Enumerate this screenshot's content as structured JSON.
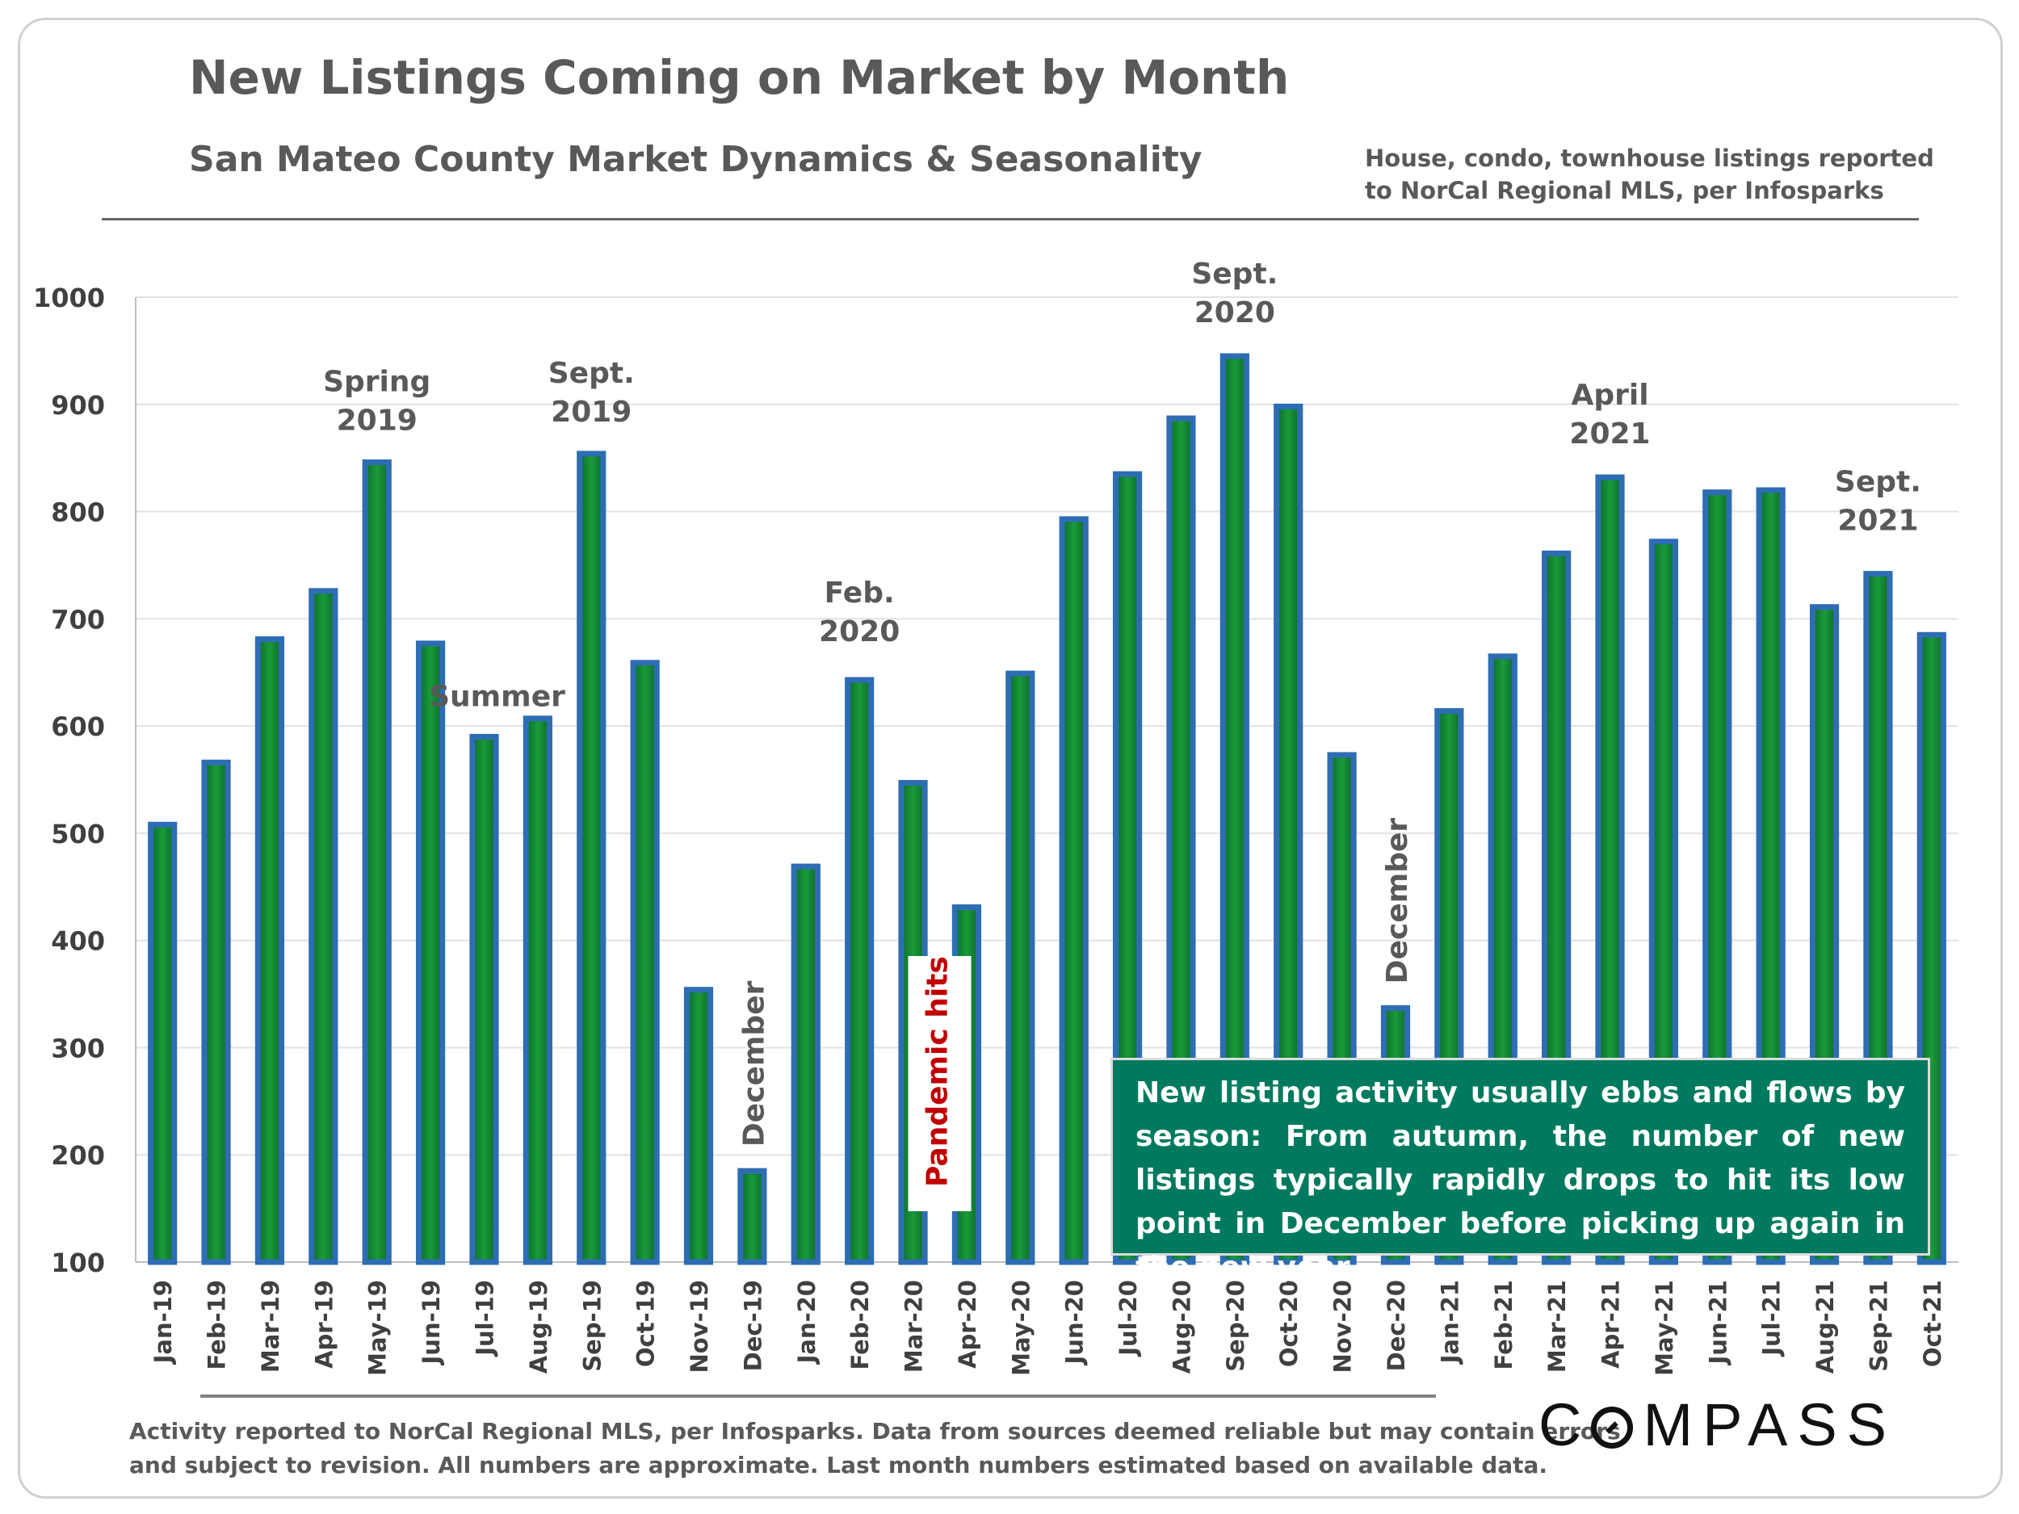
{
  "header": {
    "title": "New Listings Coming on Market by Month",
    "subtitle": "San Mateo County Market Dynamics & Seasonality",
    "note_line1": "House, condo, townhouse listings reported",
    "note_line2": "to NorCal Regional MLS, per Infosparks"
  },
  "callout": {
    "text": "New listing activity usually ebbs and flows by season: From autumn, the number of new listings typically rapidly drops to hit its low point in December before picking up again in the new year."
  },
  "footer": {
    "line1": "Activity reported to NorCal Regional MLS, per Infosparks. Data from sources deemed reliable but may contain errors",
    "line2": "and subject to revision. All numbers are approximate. Last month numbers estimated based on available data."
  },
  "logo": {
    "rest": "MPASS",
    "full": "COMPASS"
  },
  "colors": {
    "bar_fill": "#1a9a3a",
    "bar_edge": "#2e6db4",
    "text_gray": "#595959",
    "pandemic_red": "#c00000",
    "callout_bg": "#007a5e"
  },
  "chart_data": {
    "type": "bar",
    "title": "New Listings Coming on Market by Month",
    "xlabel": "",
    "ylabel": "",
    "ylim": [
      100,
      1000
    ],
    "yticks": [
      100,
      200,
      300,
      400,
      500,
      600,
      700,
      800,
      900,
      1000
    ],
    "grid": true,
    "categories": [
      "Jan-19",
      "Feb-19",
      "Mar-19",
      "Apr-19",
      "May-19",
      "Jun-19",
      "Jul-19",
      "Aug-19",
      "Sep-19",
      "Oct-19",
      "Nov-19",
      "Dec-19",
      "Jan-20",
      "Feb-20",
      "Mar-20",
      "Apr-20",
      "May-20",
      "Jun-20",
      "Jul-20",
      "Aug-20",
      "Sep-20",
      "Oct-20",
      "Nov-20",
      "Dec-20",
      "Jan-21",
      "Feb-21",
      "Mar-21",
      "Apr-21",
      "May-21",
      "Jun-21",
      "Jul-21",
      "Aug-21",
      "Sep-21",
      "Oct-21"
    ],
    "values": [
      508,
      566,
      681,
      726,
      846,
      677,
      590,
      607,
      854,
      659,
      354,
      185,
      469,
      643,
      547,
      431,
      649,
      793,
      835,
      887,
      945,
      898,
      573,
      337,
      614,
      665,
      761,
      832,
      772,
      818,
      820,
      711,
      742,
      685
    ],
    "annotations": [
      {
        "text": "Spring\n2019",
        "category": "May-19"
      },
      {
        "text": "Summer",
        "category": "Jul-19"
      },
      {
        "text": "Sept.\n2019",
        "category": "Sep-19"
      },
      {
        "text": "December",
        "category": "Dec-19"
      },
      {
        "text": "Feb.\n2020",
        "category": "Feb-20"
      },
      {
        "text": "Pandemic hits",
        "category": "Mar-20"
      },
      {
        "text": "Sept.\n2020",
        "category": "Sep-20"
      },
      {
        "text": "December",
        "category": "Dec-20"
      },
      {
        "text": "April\n2021",
        "category": "Apr-21"
      },
      {
        "text": "Sept.\n2021",
        "category": "Sep-21"
      }
    ]
  }
}
